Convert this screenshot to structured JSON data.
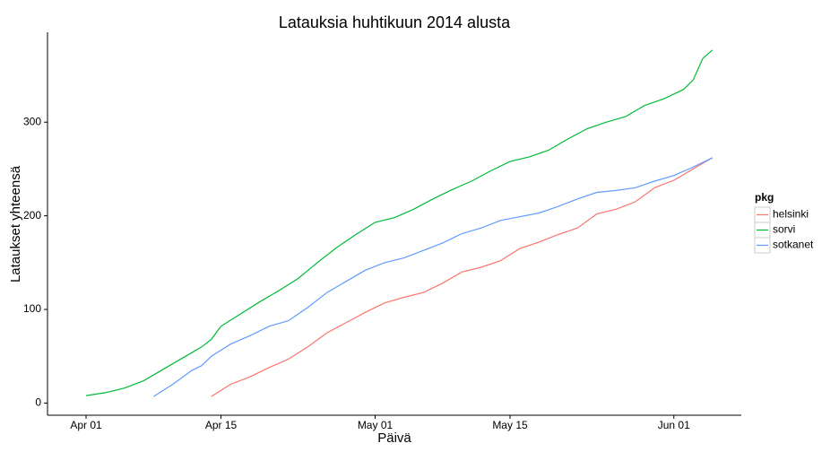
{
  "chart_data": {
    "type": "line",
    "title": "Latauksia huhtikuun 2014 alusta",
    "x_label": "Päivä",
    "y_label": "Lataukset yhteensä",
    "legend_title": "pkg",
    "legend_position": "right",
    "xlim": [
      "03-28",
      "06-08"
    ],
    "xticks": [
      {
        "value": "04-01",
        "label": "Apr 01"
      },
      {
        "value": "04-15",
        "label": "Apr 15"
      },
      {
        "value": "05-01",
        "label": "May 01"
      },
      {
        "value": "05-15",
        "label": "May 15"
      },
      {
        "value": "06-01",
        "label": "Jun 01"
      }
    ],
    "ylim": [
      -13,
      396
    ],
    "yticks": [
      0,
      100,
      200,
      300
    ],
    "series": [
      {
        "name": "helsinki",
        "color": "#F8766D",
        "x": [
          "04-14",
          "04-16",
          "04-18",
          "04-20",
          "04-22",
          "04-24",
          "04-26",
          "04-28",
          "04-30",
          "05-02",
          "05-04",
          "05-06",
          "05-08",
          "05-10",
          "05-12",
          "05-14",
          "05-16",
          "05-18",
          "05-20",
          "05-22",
          "05-24",
          "05-26",
          "05-28",
          "05-30",
          "06-01",
          "06-03",
          "06-05"
        ],
        "values": [
          7,
          20,
          28,
          38,
          47,
          60,
          75,
          86,
          97,
          107,
          113,
          118,
          128,
          140,
          145,
          152,
          165,
          172,
          180,
          187,
          202,
          207,
          215,
          230,
          238,
          250,
          262
        ]
      },
      {
        "name": "sorvi",
        "color": "#00BA38",
        "x": [
          "04-01",
          "04-03",
          "04-05",
          "04-07",
          "04-09",
          "04-11",
          "04-13",
          "04-14",
          "04-15",
          "04-17",
          "04-19",
          "04-21",
          "04-23",
          "04-25",
          "04-27",
          "04-29",
          "05-01",
          "05-03",
          "05-05",
          "05-07",
          "05-09",
          "05-11",
          "05-13",
          "05-15",
          "05-17",
          "05-19",
          "05-21",
          "05-23",
          "05-25",
          "05-27",
          "05-29",
          "05-31",
          "06-02",
          "06-03",
          "06-04",
          "06-05"
        ],
        "values": [
          8,
          11,
          16,
          24,
          36,
          48,
          60,
          68,
          82,
          95,
          108,
          120,
          133,
          150,
          166,
          180,
          193,
          198,
          207,
          218,
          228,
          237,
          248,
          258,
          263,
          270,
          282,
          293,
          300,
          306,
          318,
          325,
          335,
          345,
          368,
          377
        ]
      },
      {
        "name": "sotkanet",
        "color": "#619CFF",
        "x": [
          "04-08",
          "04-10",
          "04-12",
          "04-13",
          "04-14",
          "04-16",
          "04-18",
          "04-20",
          "04-22",
          "04-24",
          "04-26",
          "04-28",
          "04-30",
          "05-02",
          "05-04",
          "05-06",
          "05-08",
          "05-10",
          "05-12",
          "05-14",
          "05-16",
          "05-18",
          "05-20",
          "05-22",
          "05-24",
          "05-26",
          "05-28",
          "05-30",
          "06-01",
          "06-03",
          "06-05"
        ],
        "values": [
          7,
          20,
          35,
          40,
          50,
          63,
          72,
          82,
          88,
          102,
          118,
          130,
          142,
          150,
          155,
          163,
          171,
          181,
          187,
          195,
          199,
          203,
          210,
          218,
          225,
          227,
          230,
          237,
          243,
          252,
          262
        ]
      }
    ]
  }
}
